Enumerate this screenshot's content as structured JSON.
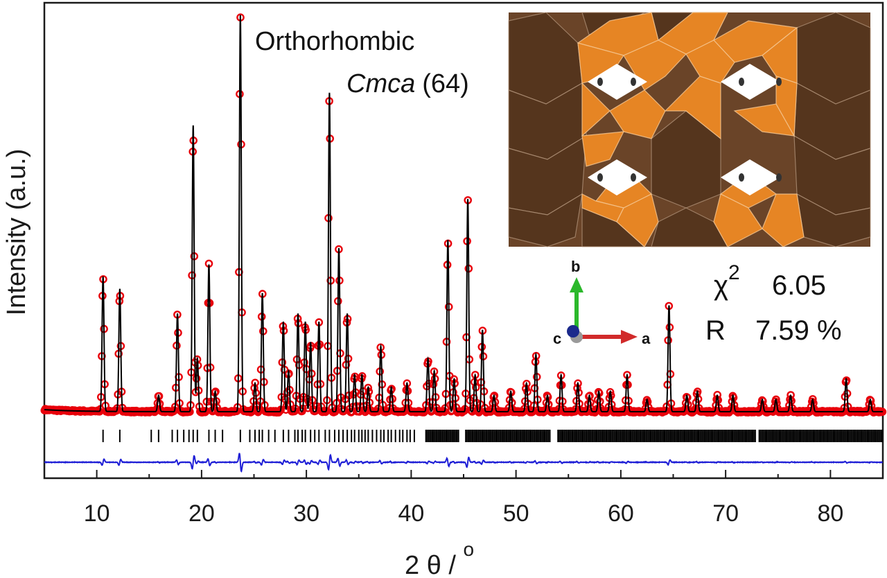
{
  "chart_data": {
    "type": "line",
    "xlabel": "2 θ / ",
    "xlabel_sup": "o",
    "ylabel": "Intensity (a.u.)",
    "xlim": [
      5,
      85
    ],
    "xticks": [
      10,
      20,
      30,
      40,
      50,
      60,
      70,
      80
    ],
    "y_ticks_shown": false,
    "grid": false,
    "phase_label": {
      "line1": "Orthorhombic",
      "space_group": "Cmca",
      "number": "(64)"
    },
    "fit_stats": {
      "chi2_symbol": "χ",
      "chi2_sup": "2",
      "chi2_value": "6.05",
      "r_label": "R",
      "r_value": "7.59 %"
    },
    "crystal_axes": {
      "a": "a",
      "b": "b",
      "c": "c"
    },
    "series": [
      {
        "name": "observed",
        "marker": "open-circle",
        "color": "#e8000b"
      },
      {
        "name": "calculated",
        "style": "line",
        "color": "#000000"
      },
      {
        "name": "difference",
        "style": "line",
        "color": "#1f1fd6"
      },
      {
        "name": "Bragg positions",
        "style": "tick",
        "color": "#000000"
      }
    ],
    "peaks": [
      {
        "x": 10.6,
        "h": 0.33
      },
      {
        "x": 12.2,
        "h": 0.3
      },
      {
        "x": 15.9,
        "h": 0.04
      },
      {
        "x": 17.7,
        "h": 0.24
      },
      {
        "x": 19.2,
        "h": 0.7
      },
      {
        "x": 19.6,
        "h": 0.13
      },
      {
        "x": 20.7,
        "h": 0.36
      },
      {
        "x": 21.3,
        "h": 0.05
      },
      {
        "x": 23.7,
        "h": 0.97
      },
      {
        "x": 25.1,
        "h": 0.07
      },
      {
        "x": 25.8,
        "h": 0.29
      },
      {
        "x": 27.8,
        "h": 0.22
      },
      {
        "x": 28.3,
        "h": 0.1
      },
      {
        "x": 29.2,
        "h": 0.24
      },
      {
        "x": 29.9,
        "h": 0.22
      },
      {
        "x": 30.4,
        "h": 0.17
      },
      {
        "x": 31.2,
        "h": 0.22
      },
      {
        "x": 32.2,
        "h": 0.78
      },
      {
        "x": 33.1,
        "h": 0.4
      },
      {
        "x": 33.9,
        "h": 0.24
      },
      {
        "x": 34.6,
        "h": 0.09
      },
      {
        "x": 35.3,
        "h": 0.09
      },
      {
        "x": 35.9,
        "h": 0.06
      },
      {
        "x": 37.1,
        "h": 0.16
      },
      {
        "x": 38.1,
        "h": 0.06
      },
      {
        "x": 39.6,
        "h": 0.07
      },
      {
        "x": 41.6,
        "h": 0.13
      },
      {
        "x": 42.2,
        "h": 0.1
      },
      {
        "x": 43.5,
        "h": 0.42
      },
      {
        "x": 44.1,
        "h": 0.08
      },
      {
        "x": 45.4,
        "h": 0.52
      },
      {
        "x": 46.1,
        "h": 0.09
      },
      {
        "x": 46.8,
        "h": 0.2
      },
      {
        "x": 47.9,
        "h": 0.04
      },
      {
        "x": 49.5,
        "h": 0.05
      },
      {
        "x": 51.0,
        "h": 0.07
      },
      {
        "x": 51.9,
        "h": 0.14
      },
      {
        "x": 53.0,
        "h": 0.04
      },
      {
        "x": 54.3,
        "h": 0.09
      },
      {
        "x": 55.9,
        "h": 0.07
      },
      {
        "x": 57.0,
        "h": 0.04
      },
      {
        "x": 57.9,
        "h": 0.05
      },
      {
        "x": 59.0,
        "h": 0.05
      },
      {
        "x": 60.6,
        "h": 0.09
      },
      {
        "x": 62.5,
        "h": 0.03
      },
      {
        "x": 64.6,
        "h": 0.26
      },
      {
        "x": 66.3,
        "h": 0.04
      },
      {
        "x": 67.3,
        "h": 0.05
      },
      {
        "x": 69.2,
        "h": 0.04
      },
      {
        "x": 70.7,
        "h": 0.04
      },
      {
        "x": 73.5,
        "h": 0.03
      },
      {
        "x": 74.8,
        "h": 0.03
      },
      {
        "x": 76.2,
        "h": 0.04
      },
      {
        "x": 78.3,
        "h": 0.03
      },
      {
        "x": 81.5,
        "h": 0.08
      },
      {
        "x": 83.8,
        "h": 0.03
      }
    ],
    "bragg_ticks": [
      10.6,
      12.2,
      15.2,
      15.9,
      17.2,
      17.7,
      18.3,
      18.8,
      19.2,
      19.6,
      20.7,
      21.3,
      22.0,
      23.7,
      24.6,
      25.1,
      25.5,
      25.8,
      26.4,
      27.0,
      27.8,
      28.3,
      28.9,
      29.2,
      29.6,
      29.9,
      30.4,
      30.8,
      31.2,
      31.8,
      32.2,
      32.7,
      33.1,
      33.5,
      33.9,
      34.3,
      34.6,
      35.0,
      35.3,
      35.6,
      35.9,
      36.3,
      36.7,
      37.1,
      37.4,
      37.8,
      38.1,
      38.5,
      38.9,
      39.2,
      39.6,
      39.9,
      40.3
    ],
    "bragg_dense_ranges": [
      [
        41.4,
        44.6
      ],
      [
        45.2,
        53.3
      ],
      [
        54.0,
        72.9
      ],
      [
        73.2,
        85
      ]
    ]
  }
}
